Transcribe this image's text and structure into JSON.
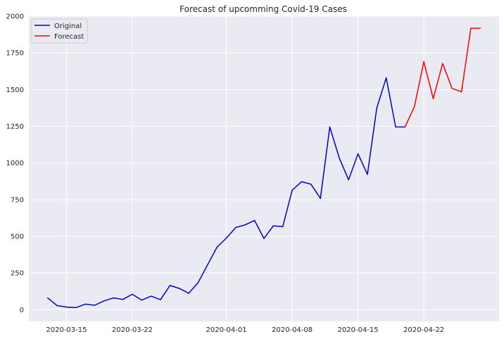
{
  "chart_data": {
    "type": "line",
    "title": "Forecast of upcomming Covid-19 Cases",
    "xlabel": "",
    "ylabel": "",
    "x_start": "2020-03-13",
    "x_end": "2020-04-28",
    "xlim": [
      "2020-03-11",
      "2020-04-30"
    ],
    "ylim": [
      -80,
      2000
    ],
    "x_ticks": [
      "2020-03-15",
      "2020-03-22",
      "2020-04-01",
      "2020-04-08",
      "2020-04-15",
      "2020-04-22"
    ],
    "y_ticks": [
      0,
      250,
      500,
      750,
      1000,
      1250,
      1500,
      1750,
      2000
    ],
    "grid": true,
    "legend_position": "top-left",
    "series": [
      {
        "name": "Original",
        "color": "#0000cc",
        "x": [
          "2020-03-13",
          "2020-03-14",
          "2020-03-15",
          "2020-03-16",
          "2020-03-17",
          "2020-03-18",
          "2020-03-19",
          "2020-03-20",
          "2020-03-21",
          "2020-03-22",
          "2020-03-23",
          "2020-03-24",
          "2020-03-25",
          "2020-03-26",
          "2020-03-27",
          "2020-03-28",
          "2020-03-29",
          "2020-03-30",
          "2020-03-31",
          "2020-04-01",
          "2020-04-02",
          "2020-04-03",
          "2020-04-04",
          "2020-04-05",
          "2020-04-06",
          "2020-04-07",
          "2020-04-08",
          "2020-04-09",
          "2020-04-10",
          "2020-04-11",
          "2020-04-12",
          "2020-04-13",
          "2020-04-14",
          "2020-04-15",
          "2020-04-16",
          "2020-04-17",
          "2020-04-18",
          "2020-04-19",
          "2020-04-20"
        ],
        "values": [
          80,
          28,
          18,
          14,
          38,
          30,
          60,
          80,
          70,
          105,
          65,
          92,
          68,
          165,
          145,
          112,
          185,
          305,
          425,
          488,
          560,
          578,
          608,
          485,
          572,
          566,
          815,
          872,
          855,
          758,
          1245,
          1035,
          885,
          1062,
          922,
          1375,
          1580,
          1245,
          1245
        ]
      },
      {
        "name": "Forecast",
        "color": "#ff0000",
        "x": [
          "2020-04-20",
          "2020-04-21",
          "2020-04-22",
          "2020-04-23",
          "2020-04-24",
          "2020-04-25",
          "2020-04-26",
          "2020-04-27",
          "2020-04-28"
        ],
        "values": [
          1245,
          1385,
          1690,
          1438,
          1678,
          1508,
          1485,
          1918,
          1918
        ]
      }
    ]
  }
}
